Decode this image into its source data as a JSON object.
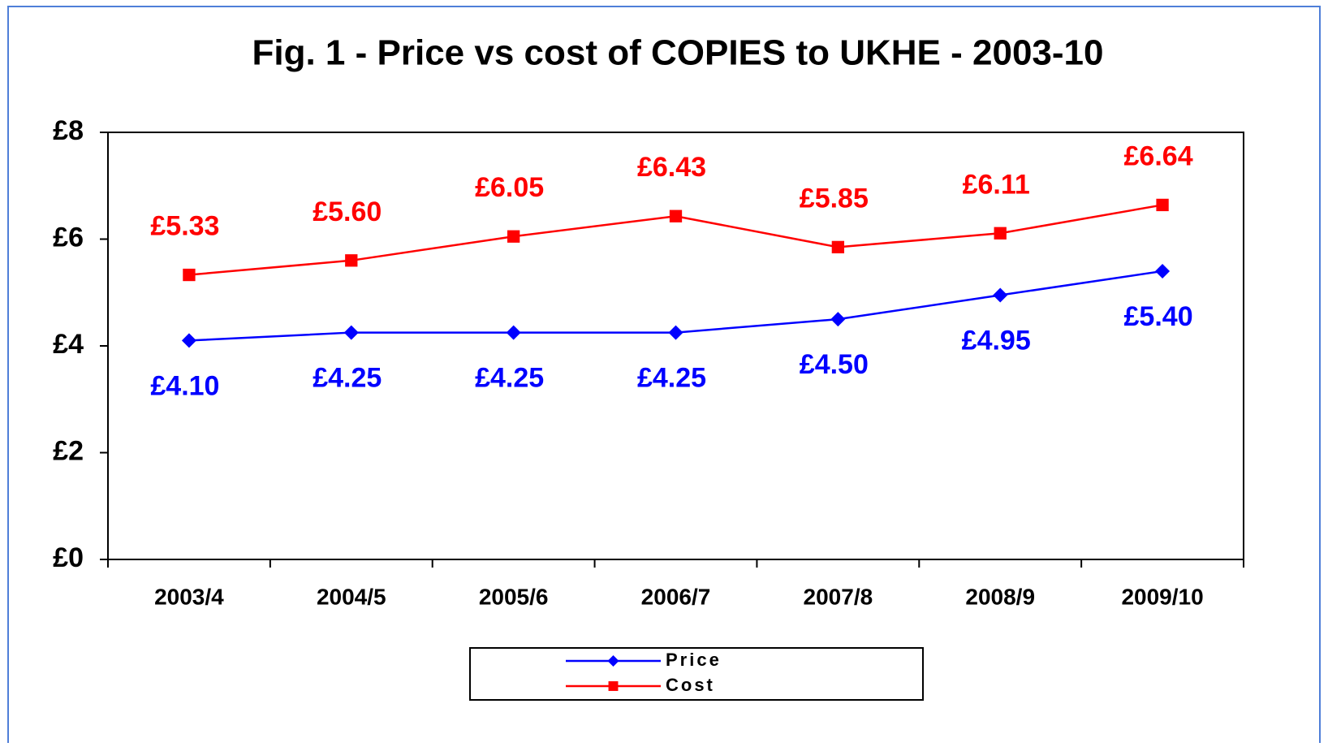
{
  "chart_data": {
    "type": "line",
    "title": "Fig. 1 - Price vs cost of COPIES to UKHE - 2003-10",
    "categories": [
      "2003/4",
      "2004/5",
      "2005/6",
      "2006/7",
      "2007/8",
      "2008/9",
      "2009/10"
    ],
    "series": [
      {
        "name": "Price",
        "color": "#0000ff",
        "marker": "diamond",
        "values": [
          4.1,
          4.25,
          4.25,
          4.25,
          4.5,
          4.95,
          5.4
        ],
        "value_labels": [
          "£4.10",
          "£4.25",
          "£4.25",
          "£4.25",
          "£4.50",
          "£4.95",
          "£5.40"
        ]
      },
      {
        "name": "Cost",
        "color": "#ff0000",
        "marker": "square",
        "values": [
          5.33,
          5.6,
          6.05,
          6.43,
          5.85,
          6.11,
          6.64
        ],
        "value_labels": [
          "£5.33",
          "£5.60",
          "£6.05",
          "£6.43",
          "£5.85",
          "£6.11",
          "£6.64"
        ]
      }
    ],
    "ylim": [
      0,
      8
    ],
    "yticks": [
      {
        "value": 0,
        "label": "£0"
      },
      {
        "value": 2,
        "label": "£2"
      },
      {
        "value": 4,
        "label": "£4"
      },
      {
        "value": 6,
        "label": "£6"
      },
      {
        "value": 8,
        "label": "£8"
      }
    ],
    "grid": false,
    "legend": "bottom"
  }
}
